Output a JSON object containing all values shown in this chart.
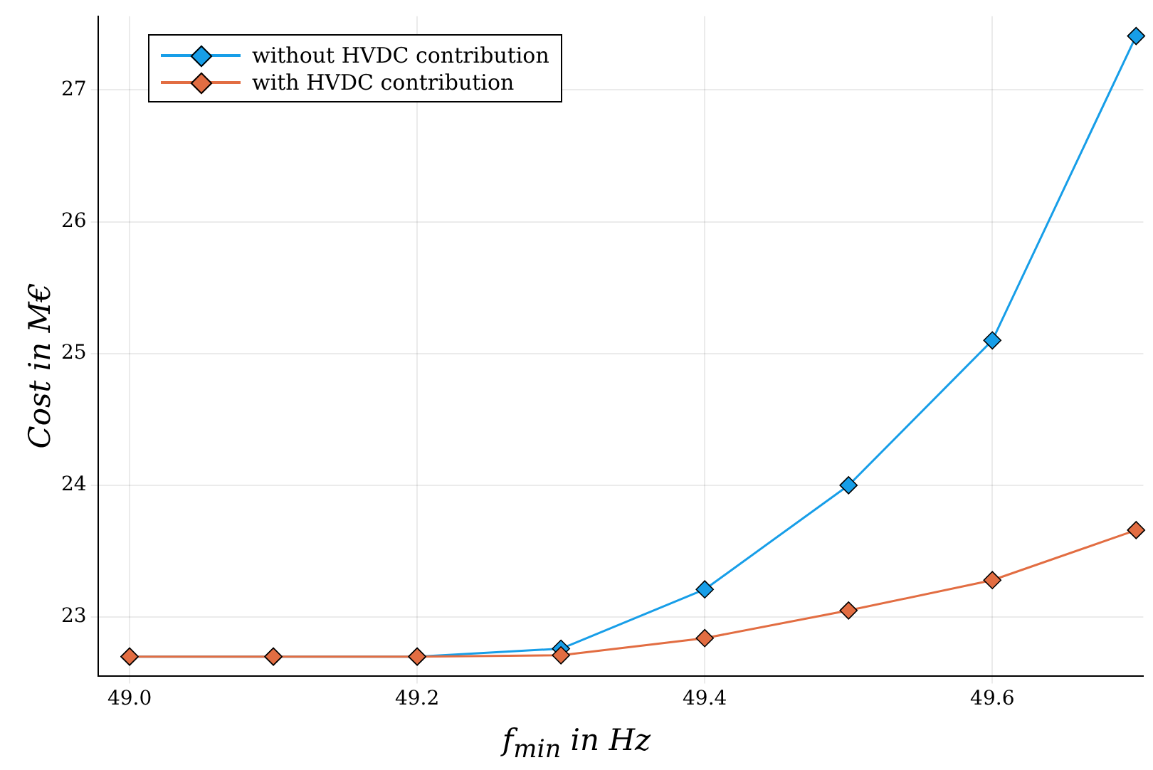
{
  "chart_data": {
    "type": "line",
    "xlabel": "f$_{min}$ in Hz",
    "ylabel": "Cost in M€",
    "x": [
      49.0,
      49.1,
      49.2,
      49.3,
      49.4,
      49.5,
      49.6,
      49.7
    ],
    "series": [
      {
        "name": "without HVDC contribution",
        "color": "#179ee8",
        "values": [
          22.7,
          22.7,
          22.7,
          22.76,
          23.21,
          24.0,
          25.1,
          27.41
        ]
      },
      {
        "name": "with HVDC contribution",
        "color": "#e26d42",
        "values": [
          22.7,
          22.7,
          22.7,
          22.71,
          22.84,
          23.05,
          23.28,
          23.66
        ]
      }
    ],
    "xlim": [
      48.978,
      49.705
    ],
    "xticks": [
      {
        "value": 49.0,
        "label": "49.0"
      },
      {
        "value": 49.2,
        "label": "49.2"
      },
      {
        "value": 49.4,
        "label": "49.4"
      },
      {
        "value": 49.6,
        "label": "49.6"
      }
    ],
    "ylim": [
      22.55,
      27.56
    ],
    "yticks": [
      23,
      24,
      25,
      26,
      27
    ],
    "grid": true,
    "legend": "top left",
    "marker": "diamond",
    "line_style": "solid"
  }
}
